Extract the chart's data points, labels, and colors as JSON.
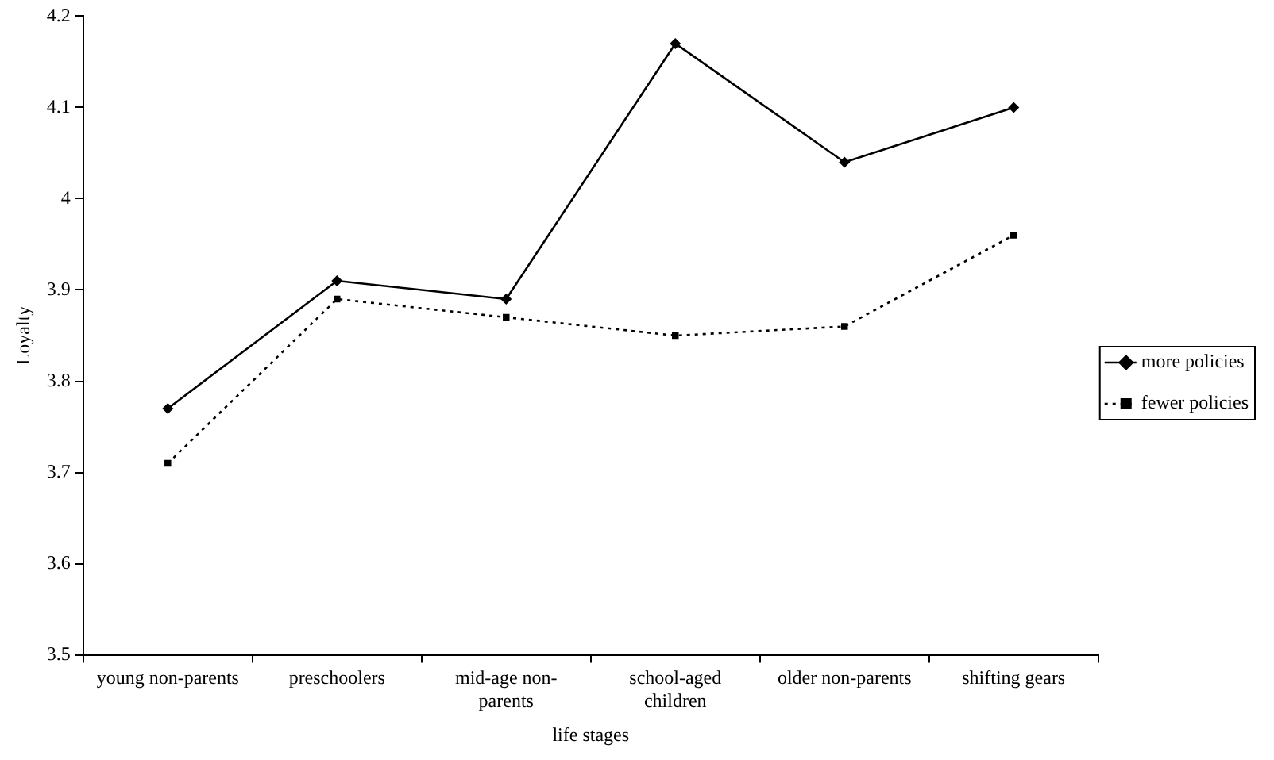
{
  "chart_data": {
    "type": "line",
    "xlabel": "life stages",
    "ylabel": "Loyalty",
    "categories": [
      "young non-parents",
      "preschoolers",
      "mid-age non-parents",
      "school-aged children",
      "older non-parents",
      "shifting gears"
    ],
    "series": [
      {
        "name": "more policies",
        "color": "#000000",
        "values": [
          3.77,
          3.91,
          3.89,
          4.17,
          4.04,
          4.1
        ],
        "marker": "diamond",
        "line_style": "solid"
      },
      {
        "name": "fewer policies",
        "color": "#000000",
        "values": [
          3.71,
          3.89,
          3.87,
          3.85,
          3.86,
          3.96
        ],
        "marker": "square",
        "line_style": "dotted"
      }
    ],
    "ylim": [
      3.5,
      4.2
    ],
    "yticks": [
      3.5,
      3.6,
      3.7,
      3.8,
      3.9,
      {
        "value": 4,
        "label": "4"
      },
      4.1,
      4.2
    ],
    "grid": false,
    "legend": "right"
  }
}
